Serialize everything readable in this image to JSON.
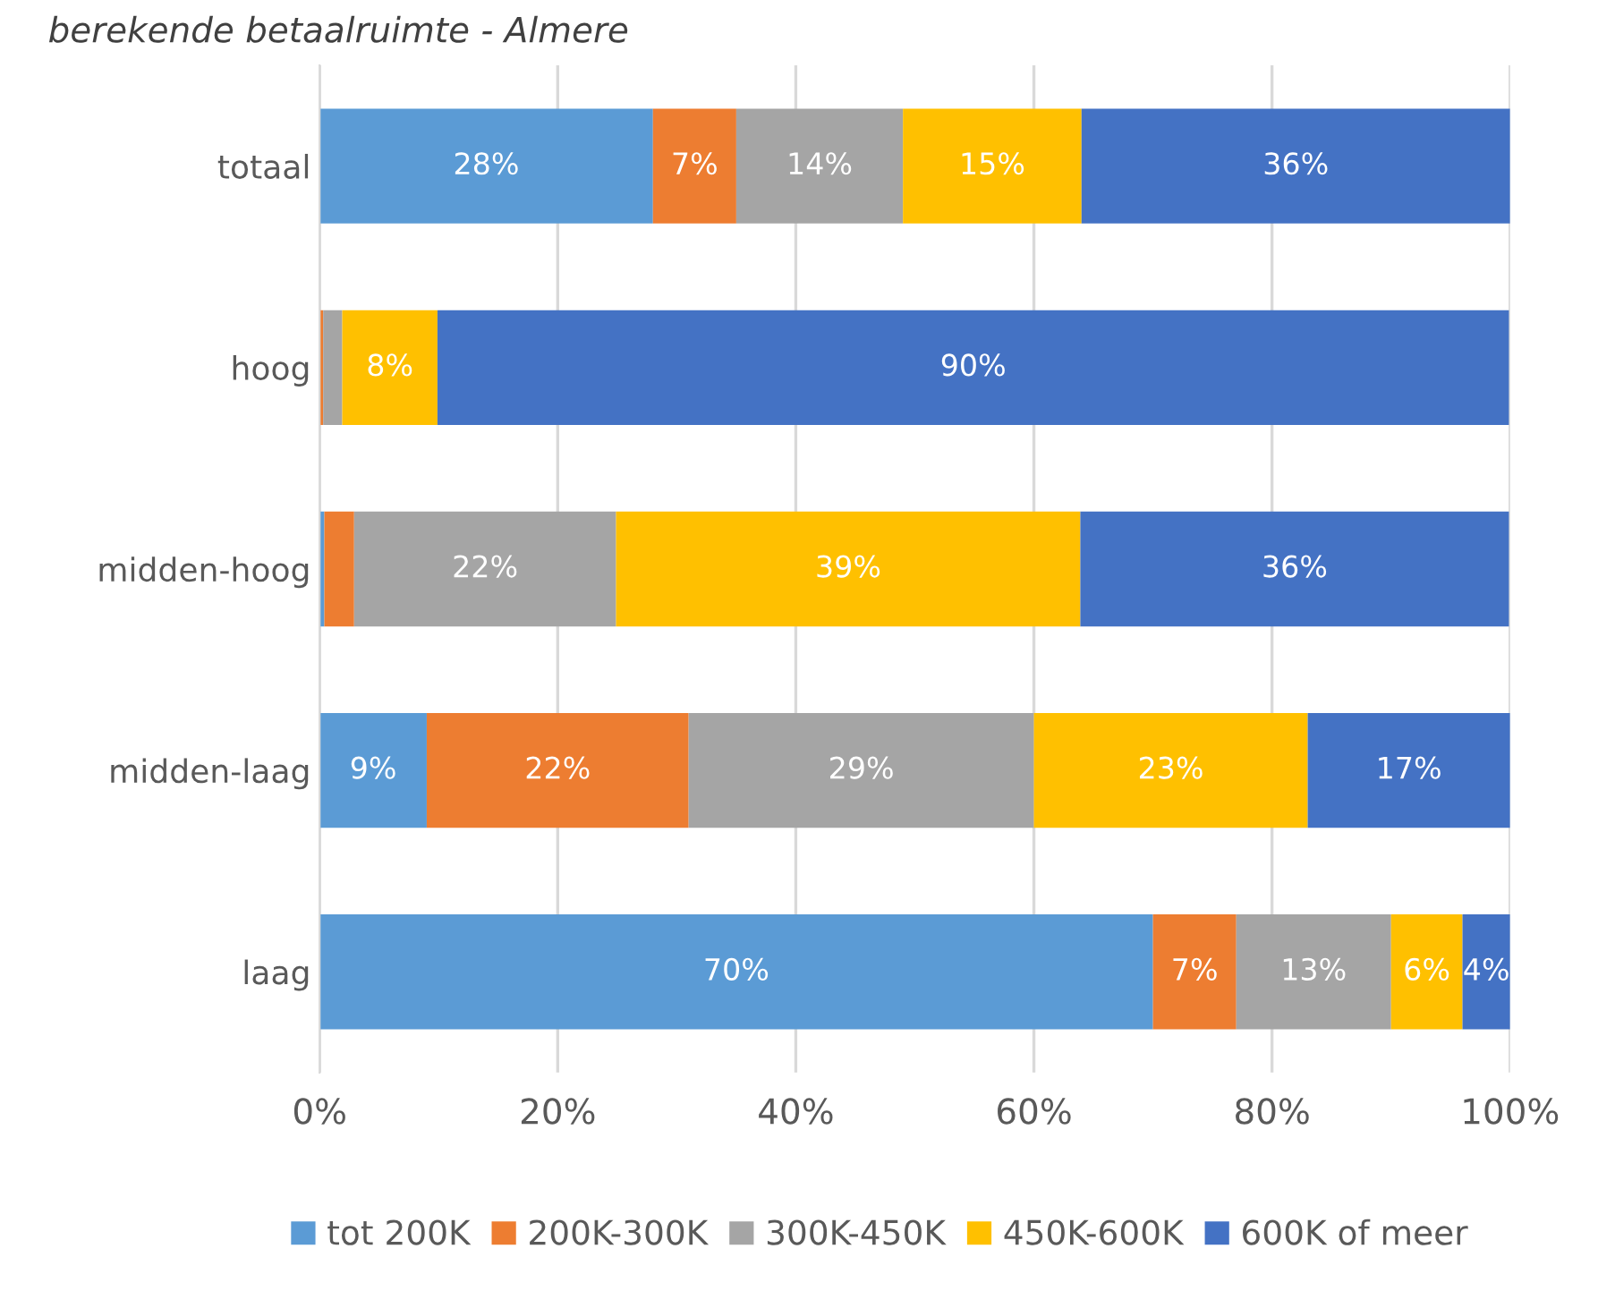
{
  "chart_data": {
    "type": "bar",
    "orientation": "horizontal",
    "stacked": true,
    "title": "berekende betaalruimte - Almere",
    "categories": [
      "totaal",
      "hoog",
      "midden-hoog",
      "midden-laag",
      "laag"
    ],
    "series": [
      {
        "name": "tot 200K",
        "color": "#5b9bd5",
        "values": [
          28,
          0,
          0.4,
          9,
          70
        ],
        "value_labels": [
          "28%",
          null,
          null,
          "9%",
          "70%"
        ]
      },
      {
        "name": "200K-300K",
        "color": "#ed7d31",
        "values": [
          7,
          0.3,
          2.5,
          22,
          7
        ],
        "value_labels": [
          "7%",
          null,
          null,
          "22%",
          "7%"
        ]
      },
      {
        "name": "300K-450K",
        "color": "#a5a5a5",
        "values": [
          14,
          1.6,
          22,
          29,
          13
        ],
        "value_labels": [
          "14%",
          null,
          "22%",
          "29%",
          "13%"
        ]
      },
      {
        "name": "450K-600K",
        "color": "#ffc000",
        "values": [
          15,
          8,
          39,
          23,
          6
        ],
        "value_labels": [
          "15%",
          "8%",
          "39%",
          "23%",
          "6%"
        ]
      },
      {
        "name": "600K of meer",
        "color": "#4472c4",
        "values": [
          36,
          90,
          36,
          17,
          4
        ],
        "value_labels": [
          "36%",
          "90%",
          "36%",
          "17%",
          "4%"
        ]
      }
    ],
    "xlim": [
      0,
      100
    ],
    "xticks": [
      {
        "value": 0,
        "label": "0%"
      },
      {
        "value": 20,
        "label": "20%"
      },
      {
        "value": 40,
        "label": "40%"
      },
      {
        "value": 60,
        "label": "60%"
      },
      {
        "value": 80,
        "label": "80%"
      },
      {
        "value": 100,
        "label": "100%"
      }
    ],
    "grid": "x",
    "legend": "bottom"
  }
}
